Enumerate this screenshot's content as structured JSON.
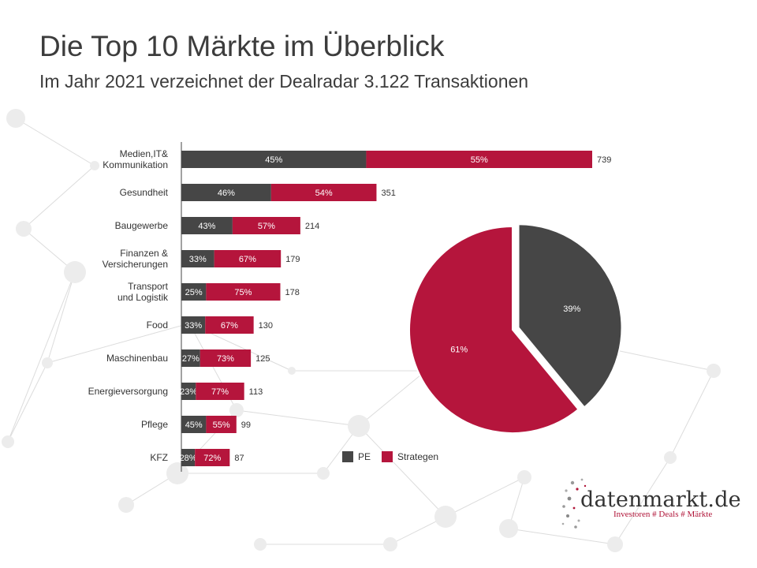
{
  "title": "Die Top 10 Märkte im Überblick",
  "subtitle": "Im Jahr 2021 verzeichnet der Dealradar 3.122 Transaktionen",
  "colors": {
    "pe": "#464646",
    "strategen": "#b5153c",
    "text": "#3c3c3c",
    "axis": "#444444"
  },
  "logo": {
    "name": "datenmarkt.de",
    "tagline": "Investoren # Deals # Märkte"
  },
  "chart_data": [
    {
      "type": "bar",
      "orientation": "horizontal",
      "stacked": true,
      "categories": [
        [
          "Medien,IT&",
          "Kommunikation"
        ],
        [
          "Gesundheit"
        ],
        [
          "Baugewerbe"
        ],
        [
          "Finanzen  &",
          "Versicherungen"
        ],
        [
          "Transport",
          "und Logistik"
        ],
        [
          "Food"
        ],
        [
          "Maschinenbau"
        ],
        [
          "Energieversorgung"
        ],
        [
          "Pflege"
        ],
        [
          "KFZ"
        ]
      ],
      "totals": [
        739,
        351,
        214,
        179,
        178,
        130,
        125,
        113,
        99,
        87
      ],
      "series": [
        {
          "name": "PE",
          "percent": [
            45,
            46,
            43,
            33,
            25,
            33,
            27,
            23,
            45,
            28
          ]
        },
        {
          "name": "Strategen",
          "percent": [
            55,
            54,
            57,
            67,
            75,
            67,
            73,
            77,
            55,
            72
          ]
        }
      ],
      "xlim": [
        0,
        739
      ]
    },
    {
      "type": "pie",
      "slices": [
        {
          "name": "PE",
          "percent": 39,
          "exploded": true
        },
        {
          "name": "Strategen",
          "percent": 61,
          "exploded": false
        }
      ],
      "legend": [
        "PE",
        "Strategen"
      ],
      "legend_position": "bottom-left"
    }
  ]
}
